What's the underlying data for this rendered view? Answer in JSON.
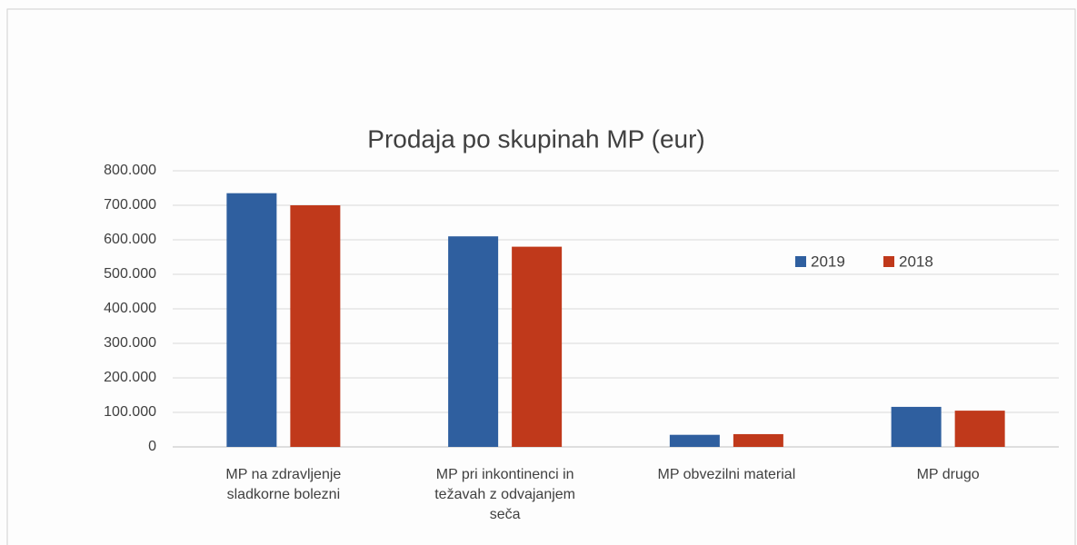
{
  "chart_data": {
    "type": "bar",
    "title": "Prodaja po skupinah MP (eur)",
    "categories": [
      "MP na zdravljenje\nsladkorne bolezni",
      "MP pri inkontinenci in\ntežavah z odvajanjem\nseča",
      "MP obvezilni material",
      "MP drugo"
    ],
    "series": [
      {
        "name": "2019",
        "color": "#2f5f9f",
        "values": [
          735000,
          610000,
          35000,
          116000
        ]
      },
      {
        "name": "2018",
        "color": "#c0391b",
        "values": [
          700000,
          580000,
          37000,
          105000
        ]
      }
    ],
    "ylim": [
      0,
      800000
    ],
    "yticks": [
      0,
      {
        "value": 100000,
        "label": "100.000"
      },
      {
        "value": 200000,
        "label": "200.000"
      },
      {
        "value": 300000,
        "label": "300.000"
      },
      {
        "value": 400000,
        "label": "400.000"
      },
      {
        "value": 500000,
        "label": "500.000"
      },
      {
        "value": 600000,
        "label": "600.000"
      },
      {
        "value": 700000,
        "label": "700.000"
      },
      {
        "value": 800000,
        "label": "800.000"
      }
    ],
    "grid": true,
    "legend": "right"
  }
}
